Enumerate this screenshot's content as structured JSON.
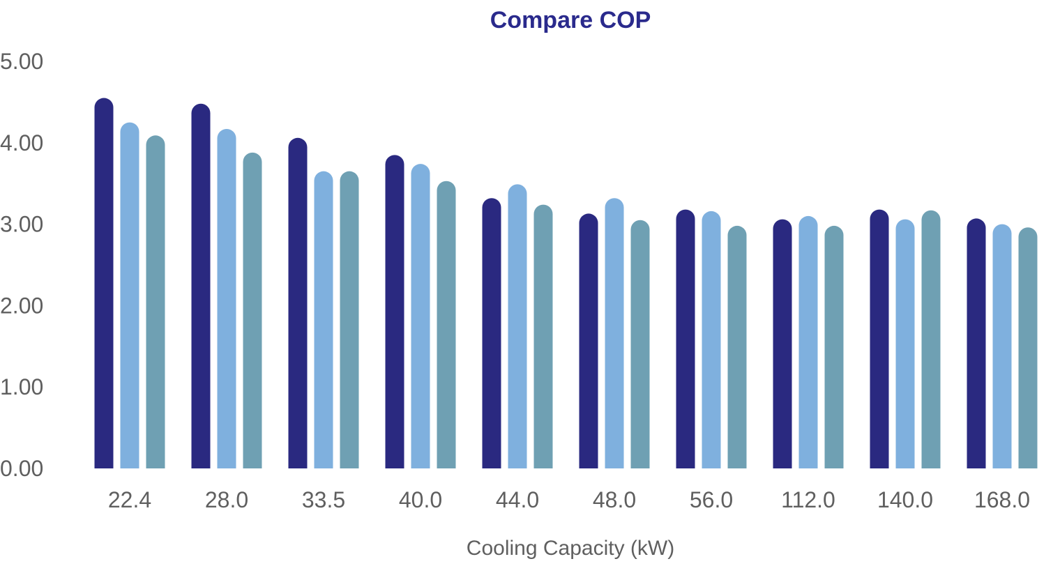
{
  "chart_data": {
    "type": "bar",
    "title": "Compare COP",
    "xlabel": "Cooling Capacity (kW)",
    "ylabel": "",
    "ylim": [
      0,
      5
    ],
    "yticks": [
      "0.00",
      "1.00",
      "2.00",
      "3.00",
      "4.00",
      "5.00"
    ],
    "grid": false,
    "legend": "none",
    "categories": [
      "22.4",
      "28.0",
      "33.5",
      "40.0",
      "44.0",
      "48.0",
      "56.0",
      "112.0",
      "140.0",
      "168.0"
    ],
    "series": [
      {
        "color": "#2a2980",
        "values": [
          4.55,
          4.48,
          4.06,
          3.85,
          3.32,
          3.13,
          3.18,
          3.06,
          3.18,
          3.07
        ]
      },
      {
        "color": "#7fb0de",
        "values": [
          4.25,
          4.17,
          3.65,
          3.74,
          3.49,
          3.32,
          3.16,
          3.1,
          3.06,
          3.0
        ]
      },
      {
        "color": "#6fa0b3",
        "values": [
          4.09,
          3.88,
          3.65,
          3.53,
          3.24,
          3.05,
          2.98,
          2.98,
          3.17,
          2.96
        ]
      }
    ]
  },
  "colors": {
    "title": "#2a2a8c",
    "text": "#5f5f5f",
    "background": "#ffffff"
  }
}
